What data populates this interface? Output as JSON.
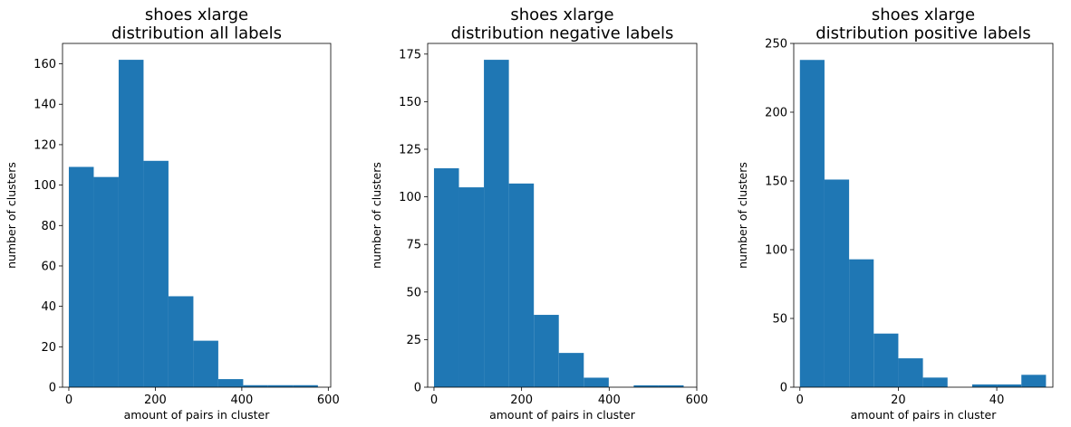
{
  "chart_data": [
    {
      "type": "bar",
      "title": "shoes xlarge\ndistribution all labels",
      "xlabel": "amount of pairs in cluster",
      "ylabel": "number of clusters",
      "xlim": [
        -14.6,
        605.6
      ],
      "ylim": [
        0,
        170.1
      ],
      "xticks": [
        0,
        200,
        400,
        600
      ],
      "yticks": [
        0,
        20,
        40,
        60,
        80,
        100,
        120,
        140,
        160
      ],
      "bin_edges": [
        0,
        57.6,
        115.2,
        172.8,
        230.4,
        288,
        345.6,
        403.2,
        460.8,
        518.4,
        576
      ],
      "values": [
        109,
        104,
        162,
        112,
        45,
        23,
        4,
        1,
        1,
        1
      ],
      "color": "#1f77b4",
      "grid": false
    },
    {
      "type": "bar",
      "title": "shoes xlarge\ndistribution negative labels",
      "xlabel": "amount of pairs in cluster",
      "ylabel": "number of clusters",
      "xlim": [
        -14.4,
        600
      ],
      "ylim": [
        0,
        180.6
      ],
      "xticks": [
        0,
        200,
        400,
        600
      ],
      "yticks": [
        0,
        25,
        50,
        75,
        100,
        125,
        150,
        175
      ],
      "bin_edges": [
        0,
        57,
        114,
        171,
        228,
        285,
        342,
        399,
        456,
        513,
        570
      ],
      "values": [
        115,
        105,
        172,
        107,
        38,
        18,
        5,
        0,
        1,
        1
      ],
      "color": "#1f77b4",
      "grid": false
    },
    {
      "type": "bar",
      "title": "shoes xlarge\ndistribution positive labels",
      "xlabel": "amount of pairs in cluster",
      "ylabel": "number of clusters",
      "xlim": [
        -1.25,
        51.4
      ],
      "ylim": [
        0,
        250
      ],
      "xticks": [
        0,
        20,
        40
      ],
      "yticks": [
        0,
        50,
        100,
        150,
        200,
        250
      ],
      "bin_edges": [
        0,
        5,
        10,
        15,
        20,
        25,
        30,
        35,
        40,
        45,
        50
      ],
      "values": [
        238,
        151,
        93,
        39,
        21,
        7,
        0,
        2,
        2,
        9
      ],
      "color": "#1f77b4",
      "grid": false
    }
  ]
}
